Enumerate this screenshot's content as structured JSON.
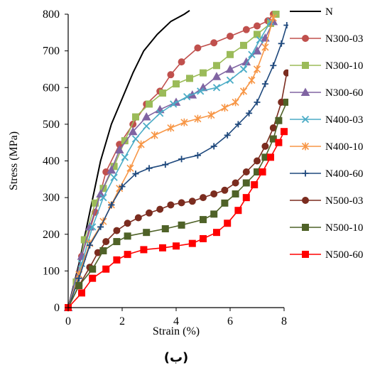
{
  "chart_data": {
    "type": "line",
    "xlabel": "Strain (%)",
    "ylabel": "Stress (MPa)",
    "xlim": [
      0,
      8
    ],
    "ylim": [
      0,
      800
    ],
    "xticks": [
      "0",
      "2",
      "4",
      "6",
      "8"
    ],
    "yticks": [
      "0",
      "100",
      "200",
      "300",
      "400",
      "500",
      "600",
      "700",
      "800"
    ],
    "grid": false,
    "legend_position": "right",
    "caption": "(ب)",
    "series": [
      {
        "name": "N",
        "color": "#000000",
        "marker": "none",
        "points": [
          [
            0,
            0
          ],
          [
            0.4,
            120
          ],
          [
            0.8,
            260
          ],
          [
            1.2,
            400
          ],
          [
            1.6,
            500
          ],
          [
            2.0,
            570
          ],
          [
            2.4,
            640
          ],
          [
            2.8,
            700
          ],
          [
            3.3,
            745
          ],
          [
            3.8,
            780
          ],
          [
            4.3,
            800
          ],
          [
            4.5,
            810
          ]
        ]
      },
      {
        "name": "N300-03",
        "color": "#c0504d",
        "marker": "circle",
        "points": [
          [
            0,
            0
          ],
          [
            0.5,
            140
          ],
          [
            1.0,
            260
          ],
          [
            1.4,
            370
          ],
          [
            1.9,
            445
          ],
          [
            2.4,
            500
          ],
          [
            2.9,
            555
          ],
          [
            3.4,
            590
          ],
          [
            3.8,
            635
          ],
          [
            4.2,
            670
          ],
          [
            4.8,
            708
          ],
          [
            5.4,
            722
          ],
          [
            6.0,
            740
          ],
          [
            6.6,
            758
          ],
          [
            7.0,
            768
          ],
          [
            7.4,
            782
          ],
          [
            7.6,
            800
          ]
        ]
      },
      {
        "name": "N300-10",
        "color": "#9bbb59",
        "marker": "square",
        "points": [
          [
            0,
            0
          ],
          [
            0.3,
            70
          ],
          [
            0.6,
            185
          ],
          [
            1.0,
            285
          ],
          [
            1.3,
            325
          ],
          [
            1.7,
            385
          ],
          [
            2.1,
            455
          ],
          [
            2.5,
            520
          ],
          [
            3.0,
            555
          ],
          [
            3.5,
            585
          ],
          [
            4.0,
            610
          ],
          [
            4.5,
            625
          ],
          [
            5.0,
            640
          ],
          [
            5.5,
            660
          ],
          [
            6.0,
            690
          ],
          [
            6.5,
            715
          ],
          [
            7.0,
            745
          ],
          [
            7.5,
            775
          ],
          [
            7.7,
            800
          ]
        ]
      },
      {
        "name": "N300-60",
        "color": "#8064a2",
        "marker": "triangle",
        "points": [
          [
            0,
            0
          ],
          [
            0.5,
            140
          ],
          [
            0.8,
            220
          ],
          [
            1.2,
            310
          ],
          [
            1.6,
            375
          ],
          [
            1.9,
            430
          ],
          [
            2.4,
            480
          ],
          [
            2.9,
            520
          ],
          [
            3.4,
            540
          ],
          [
            4.0,
            560
          ],
          [
            4.6,
            580
          ],
          [
            5.0,
            600
          ],
          [
            5.5,
            630
          ],
          [
            6.0,
            650
          ],
          [
            6.6,
            670
          ],
          [
            7.0,
            700
          ],
          [
            7.3,
            735
          ],
          [
            7.6,
            780
          ]
        ]
      },
      {
        "name": "N400-03",
        "color": "#4bacc6",
        "marker": "cross",
        "points": [
          [
            0,
            0
          ],
          [
            0.5,
            120
          ],
          [
            0.9,
            220
          ],
          [
            1.3,
            300
          ],
          [
            1.7,
            355
          ],
          [
            2.1,
            410
          ],
          [
            2.5,
            460
          ],
          [
            2.9,
            495
          ],
          [
            3.4,
            530
          ],
          [
            3.9,
            555
          ],
          [
            4.4,
            575
          ],
          [
            4.9,
            590
          ],
          [
            5.5,
            600
          ],
          [
            6.0,
            620
          ],
          [
            6.5,
            650
          ],
          [
            6.8,
            690
          ],
          [
            7.1,
            730
          ],
          [
            7.5,
            780
          ]
        ]
      },
      {
        "name": "N400-10",
        "color": "#f79646",
        "marker": "star",
        "points": [
          [
            0,
            0
          ],
          [
            0.4,
            90
          ],
          [
            0.8,
            175
          ],
          [
            1.3,
            235
          ],
          [
            1.6,
            280
          ],
          [
            1.9,
            325
          ],
          [
            2.3,
            380
          ],
          [
            2.7,
            445
          ],
          [
            3.2,
            470
          ],
          [
            3.8,
            490
          ],
          [
            4.3,
            505
          ],
          [
            4.8,
            515
          ],
          [
            5.3,
            525
          ],
          [
            5.8,
            545
          ],
          [
            6.2,
            560
          ],
          [
            6.5,
            590
          ],
          [
            6.8,
            620
          ],
          [
            7.0,
            650
          ],
          [
            7.3,
            710
          ],
          [
            7.6,
            790
          ]
        ]
      },
      {
        "name": "N400-60",
        "color": "#1f497d",
        "marker": "plus",
        "points": [
          [
            0,
            0
          ],
          [
            0.4,
            80
          ],
          [
            0.8,
            170
          ],
          [
            1.2,
            220
          ],
          [
            1.6,
            280
          ],
          [
            2.0,
            330
          ],
          [
            2.5,
            365
          ],
          [
            3.0,
            380
          ],
          [
            3.6,
            390
          ],
          [
            4.2,
            405
          ],
          [
            4.8,
            415
          ],
          [
            5.4,
            440
          ],
          [
            5.9,
            470
          ],
          [
            6.3,
            500
          ],
          [
            6.7,
            530
          ],
          [
            7.0,
            560
          ],
          [
            7.3,
            610
          ],
          [
            7.6,
            660
          ],
          [
            7.9,
            720
          ],
          [
            8.1,
            770
          ]
        ]
      },
      {
        "name": "N500-03",
        "color": "#7b2c1f",
        "marker": "circle",
        "points": [
          [
            0,
            0
          ],
          [
            0.4,
            60
          ],
          [
            0.8,
            110
          ],
          [
            1.1,
            150
          ],
          [
            1.4,
            180
          ],
          [
            1.8,
            210
          ],
          [
            2.2,
            230
          ],
          [
            2.6,
            245
          ],
          [
            3.0,
            258
          ],
          [
            3.4,
            268
          ],
          [
            3.8,
            280
          ],
          [
            4.2,
            286
          ],
          [
            4.6,
            290
          ],
          [
            5.0,
            300
          ],
          [
            5.4,
            310
          ],
          [
            5.8,
            320
          ],
          [
            6.2,
            340
          ],
          [
            6.6,
            370
          ],
          [
            7.0,
            400
          ],
          [
            7.3,
            440
          ],
          [
            7.6,
            490
          ],
          [
            7.9,
            560
          ],
          [
            8.1,
            640
          ]
        ]
      },
      {
        "name": "N500-10",
        "color": "#4f6228",
        "marker": "square",
        "points": [
          [
            0,
            0
          ],
          [
            0.4,
            60
          ],
          [
            0.9,
            105
          ],
          [
            1.3,
            155
          ],
          [
            1.8,
            180
          ],
          [
            2.2,
            195
          ],
          [
            2.9,
            205
          ],
          [
            3.6,
            215
          ],
          [
            4.2,
            225
          ],
          [
            5.0,
            240
          ],
          [
            5.4,
            255
          ],
          [
            5.8,
            285
          ],
          [
            6.2,
            310
          ],
          [
            6.6,
            340
          ],
          [
            7.0,
            370
          ],
          [
            7.3,
            410
          ],
          [
            7.6,
            460
          ],
          [
            7.8,
            510
          ],
          [
            8.1,
            560
          ]
        ]
      },
      {
        "name": "N500-60",
        "color": "#ff0000",
        "marker": "square",
        "points": [
          [
            0,
            0
          ],
          [
            0.5,
            40
          ],
          [
            0.9,
            80
          ],
          [
            1.4,
            105
          ],
          [
            1.8,
            130
          ],
          [
            2.2,
            145
          ],
          [
            2.8,
            158
          ],
          [
            3.5,
            163
          ],
          [
            4.0,
            168
          ],
          [
            4.6,
            175
          ],
          [
            5.0,
            188
          ],
          [
            5.5,
            205
          ],
          [
            5.9,
            230
          ],
          [
            6.3,
            265
          ],
          [
            6.6,
            300
          ],
          [
            6.9,
            335
          ],
          [
            7.2,
            370
          ],
          [
            7.5,
            410
          ],
          [
            7.8,
            450
          ],
          [
            8.0,
            480
          ]
        ]
      }
    ]
  }
}
